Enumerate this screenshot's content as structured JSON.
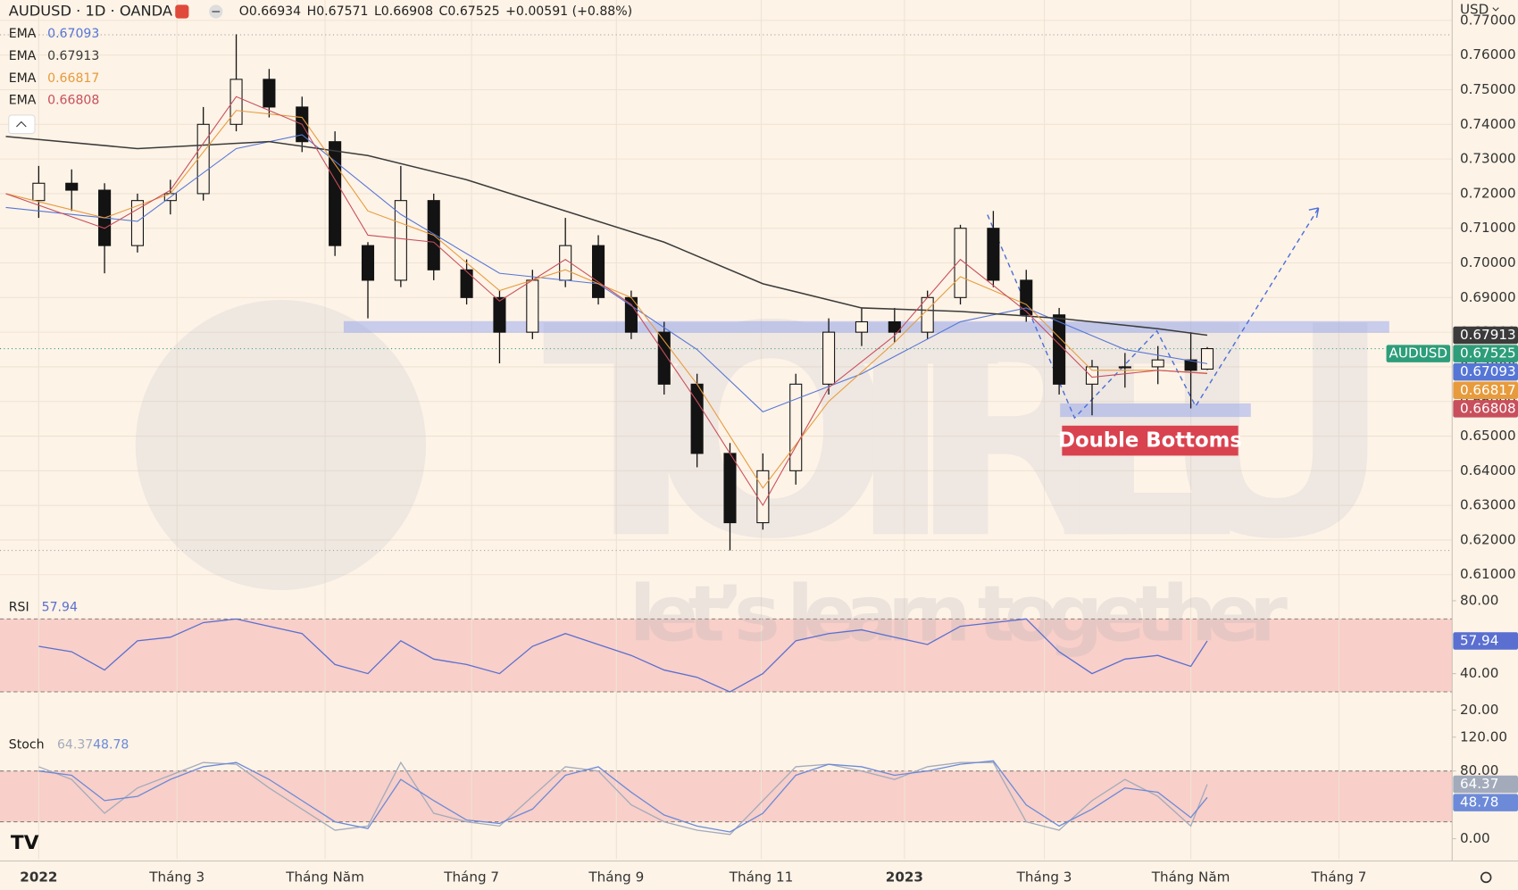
{
  "header": {
    "symbol": "AUDUSD · 1D · OANDA",
    "quote": [
      {
        "k": "O",
        "v": "0.66934"
      },
      {
        "k": "H",
        "v": "0.67571"
      },
      {
        "k": "L",
        "v": "0.66908"
      },
      {
        "k": "C",
        "v": "0.67525"
      }
    ],
    "change": "+0.00591 (+0.88%)"
  },
  "currency": "USD",
  "watermark": {
    "brand": "TOTRIEU",
    "slogan": "let’s learn together"
  },
  "annotation": "Double Bottoms",
  "chart_data": [
    {
      "type": "candlestick",
      "symbol_label": "AUDUSD",
      "close_label": "0.67525",
      "x": [
        0,
        2,
        4,
        6,
        8,
        10,
        12,
        14,
        16,
        18,
        20,
        22,
        24,
        26,
        28,
        30,
        32,
        34,
        36,
        38,
        40,
        42,
        44,
        46,
        48,
        50,
        52,
        54,
        56,
        58,
        60,
        62,
        64,
        66,
        68,
        70,
        71
      ],
      "open": [
        0.718,
        0.723,
        0.721,
        0.705,
        0.718,
        0.72,
        0.74,
        0.753,
        0.745,
        0.735,
        0.705,
        0.695,
        0.718,
        0.698,
        0.69,
        0.68,
        0.695,
        0.705,
        0.69,
        0.68,
        0.665,
        0.645,
        0.625,
        0.64,
        0.665,
        0.68,
        0.683,
        0.68,
        0.69,
        0.71,
        0.695,
        0.685,
        0.665,
        0.67,
        0.67,
        0.672,
        0.66934
      ],
      "high": [
        0.728,
        0.727,
        0.723,
        0.72,
        0.724,
        0.745,
        0.766,
        0.756,
        0.748,
        0.738,
        0.706,
        0.728,
        0.72,
        0.701,
        0.692,
        0.698,
        0.713,
        0.708,
        0.692,
        0.683,
        0.668,
        0.648,
        0.645,
        0.668,
        0.684,
        0.687,
        0.687,
        0.692,
        0.711,
        0.715,
        0.698,
        0.687,
        0.672,
        0.674,
        0.676,
        0.68,
        0.67571
      ],
      "low": [
        0.713,
        0.715,
        0.697,
        0.703,
        0.714,
        0.718,
        0.738,
        0.742,
        0.732,
        0.702,
        0.684,
        0.693,
        0.695,
        0.688,
        0.671,
        0.678,
        0.693,
        0.688,
        0.678,
        0.662,
        0.641,
        0.617,
        0.623,
        0.636,
        0.662,
        0.676,
        0.677,
        0.678,
        0.688,
        0.693,
        0.683,
        0.662,
        0.656,
        0.664,
        0.665,
        0.658,
        0.66908
      ],
      "close": [
        0.723,
        0.721,
        0.705,
        0.718,
        0.72,
        0.74,
        0.753,
        0.745,
        0.735,
        0.705,
        0.695,
        0.718,
        0.698,
        0.69,
        0.68,
        0.695,
        0.705,
        0.69,
        0.68,
        0.665,
        0.645,
        0.625,
        0.64,
        0.665,
        0.68,
        0.683,
        0.68,
        0.69,
        0.71,
        0.695,
        0.685,
        0.665,
        0.67,
        0.67,
        0.672,
        0.669,
        0.67525
      ],
      "up_color": "#fdf3e7",
      "down_color": "#131313",
      "close_color": "#2e9d7a",
      "series": [
        {
          "name": "EMA",
          "legend_value": "0.67093",
          "color": "#5676d6",
          "x": [
            -2,
            6,
            12,
            16,
            22,
            28,
            34,
            40,
            44,
            50,
            56,
            60,
            66,
            71
          ],
          "values": [
            0.716,
            0.712,
            0.733,
            0.737,
            0.714,
            0.697,
            0.694,
            0.675,
            0.657,
            0.668,
            0.683,
            0.687,
            0.675,
            0.67093
          ]
        },
        {
          "name": "EMA",
          "legend_value": "0.67913",
          "color": "#3b3b3b",
          "x": [
            -2,
            6,
            14,
            20,
            26,
            32,
            38,
            44,
            50,
            56,
            62,
            68,
            71
          ],
          "values": [
            0.7365,
            0.733,
            0.735,
            0.731,
            0.724,
            0.715,
            0.706,
            0.694,
            0.687,
            0.686,
            0.684,
            0.681,
            0.67913
          ]
        },
        {
          "name": "EMA",
          "legend_value": "0.66817",
          "color": "#e79b3c",
          "x": [
            -2,
            4,
            8,
            12,
            16,
            20,
            24,
            28,
            32,
            36,
            40,
            44,
            48,
            52,
            56,
            60,
            64,
            68,
            71
          ],
          "values": [
            0.72,
            0.713,
            0.72,
            0.744,
            0.742,
            0.715,
            0.708,
            0.692,
            0.698,
            0.69,
            0.665,
            0.635,
            0.66,
            0.677,
            0.696,
            0.688,
            0.669,
            0.669,
            0.66817
          ]
        },
        {
          "name": "EMA",
          "legend_value": "0.66808",
          "color": "#c84f5c",
          "x": [
            -2,
            4,
            8,
            12,
            16,
            20,
            24,
            28,
            32,
            36,
            40,
            44,
            48,
            52,
            56,
            60,
            64,
            68,
            71
          ],
          "values": [
            0.72,
            0.71,
            0.721,
            0.748,
            0.74,
            0.708,
            0.706,
            0.689,
            0.701,
            0.688,
            0.66,
            0.63,
            0.664,
            0.679,
            0.701,
            0.686,
            0.667,
            0.669,
            0.66808
          ]
        }
      ],
      "xlim": [
        -2.353,
        85.88
      ],
      "xticks": [
        {
          "value": 0,
          "label": "2022"
        },
        {
          "value": 8.4,
          "label": "Tháng 3"
        },
        {
          "value": 17.4,
          "label": "Tháng Năm"
        },
        {
          "value": 26.3,
          "label": "Tháng 7"
        },
        {
          "value": 35.1,
          "label": "Tháng 9"
        },
        {
          "value": 43.9,
          "label": "Tháng 11"
        },
        {
          "value": 52.6,
          "label": "2023"
        },
        {
          "value": 61.1,
          "label": "Tháng 3"
        },
        {
          "value": 70,
          "label": "Tháng Năm"
        },
        {
          "value": 79,
          "label": "Tháng 7"
        }
      ],
      "ylim": [
        0.6061,
        0.7759
      ],
      "yticks": [
        {
          "value": 0.61,
          "label": "0.61000"
        },
        {
          "value": 0.62,
          "label": "0.62000"
        },
        {
          "value": 0.63,
          "label": "0.63000"
        },
        {
          "value": 0.64,
          "label": "0.64000"
        },
        {
          "value": 0.65,
          "label": "0.65000"
        },
        {
          "value": 0.66,
          "label": "0.66000"
        },
        {
          "value": 0.67,
          "label": "0.67000"
        },
        {
          "value": 0.68,
          "label": "0.68000"
        },
        {
          "value": 0.69,
          "label": "0.69000"
        },
        {
          "value": 0.7,
          "label": "0.70000"
        },
        {
          "value": 0.71,
          "label": "0.71000"
        },
        {
          "value": 0.72,
          "label": "0.72000"
        },
        {
          "value": 0.73,
          "label": "0.73000"
        },
        {
          "value": 0.74,
          "label": "0.74000"
        },
        {
          "value": 0.75,
          "label": "0.75000"
        },
        {
          "value": 0.76,
          "label": "0.76000"
        },
        {
          "value": 0.77,
          "label": "0.77000"
        }
      ],
      "grid": true
    },
    {
      "type": "line",
      "title": "RSI",
      "x": [
        0,
        2,
        4,
        6,
        8,
        10,
        12,
        14,
        16,
        18,
        20,
        22,
        24,
        26,
        28,
        30,
        32,
        34,
        36,
        38,
        40,
        42,
        44,
        46,
        48,
        50,
        52,
        54,
        56,
        58,
        60,
        62,
        64,
        66,
        68,
        70,
        71
      ],
      "series": [
        {
          "legend_value": "57.94",
          "color": "#5a6fd0",
          "values": [
            55,
            52,
            42,
            58,
            60,
            68,
            70,
            66,
            62,
            45,
            40,
            58,
            48,
            45,
            40,
            55,
            62,
            56,
            50,
            42,
            38,
            30,
            40,
            58,
            62,
            64,
            60,
            56,
            66,
            68,
            70,
            52,
            40,
            48,
            50,
            44,
            57.94
          ]
        }
      ],
      "band": [
        30,
        70
      ],
      "band_color": "#f2a5a5",
      "ylim": [
        11.5,
        86.9
      ],
      "yticks": [
        {
          "value": 20,
          "label": "20.00"
        },
        {
          "value": 40,
          "label": "40.00"
        },
        {
          "value": 80,
          "label": "80.00"
        }
      ],
      "grid": true
    },
    {
      "type": "line",
      "title": "Stoch",
      "x": [
        0,
        2,
        4,
        6,
        8,
        10,
        12,
        14,
        16,
        18,
        20,
        22,
        24,
        26,
        28,
        30,
        32,
        34,
        36,
        38,
        40,
        42,
        44,
        46,
        48,
        50,
        52,
        54,
        56,
        58,
        60,
        62,
        64,
        66,
        68,
        70,
        71
      ],
      "series": [
        {
          "legend_value": "64.37",
          "color": "#a3abbb",
          "values": [
            85,
            70,
            30,
            60,
            75,
            90,
            88,
            60,
            35,
            10,
            15,
            90,
            30,
            20,
            15,
            50,
            85,
            80,
            40,
            20,
            10,
            5,
            45,
            85,
            88,
            80,
            70,
            85,
            90,
            90,
            20,
            10,
            45,
            70,
            50,
            15,
            64.37
          ]
        },
        {
          "legend_value": "48.78",
          "color": "#6c8ad8",
          "values": [
            80,
            75,
            45,
            50,
            70,
            85,
            90,
            70,
            45,
            20,
            12,
            70,
            45,
            22,
            18,
            35,
            75,
            85,
            55,
            28,
            15,
            8,
            30,
            75,
            88,
            85,
            75,
            80,
            88,
            92,
            40,
            15,
            35,
            60,
            55,
            25,
            48.78
          ]
        }
      ],
      "band": [
        20,
        80
      ],
      "band_color": "#f2a5a5",
      "ylim": [
        -24,
        133.7
      ],
      "yticks": [
        {
          "value": 0,
          "label": "0.00"
        },
        {
          "value": 80,
          "label": "80.00"
        },
        {
          "value": 120,
          "label": "120.00"
        }
      ],
      "grid": true
    }
  ]
}
